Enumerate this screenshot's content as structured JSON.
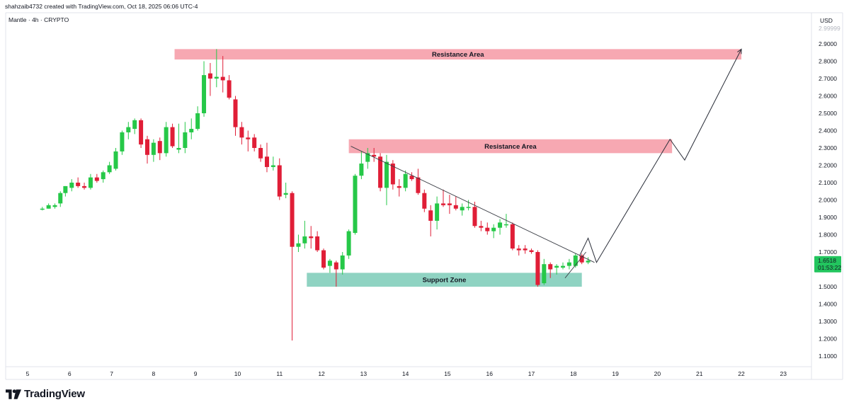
{
  "header": {
    "created_by": "shahzaib4732 created with TradingView.com, Oct 18, 2025 06:06 UTC-4"
  },
  "branding": {
    "logo_text": "TradingView"
  },
  "colors": {
    "up": "#26c848",
    "down": "#e01e37",
    "resistance_fill": "#f7a8b2",
    "support_fill": "#8fd3c2",
    "price_label_bg": "#22c55e",
    "grid": "#eef0f3",
    "axis_text": "#131722"
  },
  "chart_data": {
    "type": "candlestick",
    "symbol_line": "Mantle · 4h · CRYPTO",
    "currency": "USD",
    "y_axis": {
      "range": [
        1.05,
        3.0
      ],
      "ticks": [
        "1.1000",
        "1.2000",
        "1.3000",
        "1.4000",
        "1.5000",
        "1.6000",
        "1.7000",
        "1.8000",
        "1.9000",
        "2.0000",
        "2.1000",
        "2.2000",
        "2.3000",
        "2.4000",
        "2.5000",
        "2.6000",
        "2.7000",
        "2.8000",
        "2.9000"
      ],
      "top_tick_partial": "2.99999"
    },
    "x_axis": {
      "range": [
        4.5,
        23.3
      ],
      "labels": [
        "5",
        "6",
        "7",
        "8",
        "9",
        "10",
        "11",
        "12",
        "13",
        "14",
        "15",
        "16",
        "17",
        "18",
        "19",
        "20",
        "21",
        "22",
        "23"
      ]
    },
    "price_label": {
      "price": "1.6518",
      "countdown": "01:53:22"
    },
    "candles": [
      {
        "t": 5.35,
        "o": 1.95,
        "h": 1.96,
        "l": 1.94,
        "c": 1.95
      },
      {
        "t": 5.5,
        "o": 1.95,
        "h": 1.98,
        "l": 1.95,
        "c": 1.97
      },
      {
        "t": 5.65,
        "o": 1.96,
        "h": 1.98,
        "l": 1.95,
        "c": 1.97
      },
      {
        "t": 5.78,
        "o": 1.98,
        "h": 2.05,
        "l": 1.96,
        "c": 2.04
      },
      {
        "t": 5.9,
        "o": 2.04,
        "h": 2.08,
        "l": 2.02,
        "c": 2.08
      },
      {
        "t": 6.05,
        "o": 2.07,
        "h": 2.12,
        "l": 2.05,
        "c": 2.1
      },
      {
        "t": 6.2,
        "o": 2.1,
        "h": 2.13,
        "l": 2.07,
        "c": 2.08
      },
      {
        "t": 6.35,
        "o": 2.08,
        "h": 2.1,
        "l": 2.06,
        "c": 2.07
      },
      {
        "t": 6.5,
        "o": 2.07,
        "h": 2.15,
        "l": 2.06,
        "c": 2.13
      },
      {
        "t": 6.65,
        "o": 2.13,
        "h": 2.15,
        "l": 2.1,
        "c": 2.11
      },
      {
        "t": 6.8,
        "o": 2.12,
        "h": 2.17,
        "l": 2.1,
        "c": 2.16
      },
      {
        "t": 6.95,
        "o": 2.16,
        "h": 2.22,
        "l": 2.15,
        "c": 2.2
      },
      {
        "t": 7.1,
        "o": 2.18,
        "h": 2.3,
        "l": 2.17,
        "c": 2.28
      },
      {
        "t": 7.25,
        "o": 2.28,
        "h": 2.4,
        "l": 2.26,
        "c": 2.39
      },
      {
        "t": 7.4,
        "o": 2.39,
        "h": 2.45,
        "l": 2.35,
        "c": 2.42
      },
      {
        "t": 7.55,
        "o": 2.41,
        "h": 2.47,
        "l": 2.38,
        "c": 2.46
      },
      {
        "t": 7.7,
        "o": 2.46,
        "h": 2.47,
        "l": 2.3,
        "c": 2.32
      },
      {
        "t": 7.85,
        "o": 2.35,
        "h": 2.37,
        "l": 2.21,
        "c": 2.26
      },
      {
        "t": 8.0,
        "o": 2.26,
        "h": 2.35,
        "l": 2.22,
        "c": 2.33
      },
      {
        "t": 8.15,
        "o": 2.34,
        "h": 2.36,
        "l": 2.23,
        "c": 2.27
      },
      {
        "t": 8.3,
        "o": 2.27,
        "h": 2.45,
        "l": 2.25,
        "c": 2.42
      },
      {
        "t": 8.45,
        "o": 2.42,
        "h": 2.44,
        "l": 2.3,
        "c": 2.31
      },
      {
        "t": 8.6,
        "o": 2.29,
        "h": 2.44,
        "l": 2.27,
        "c": 2.3
      },
      {
        "t": 8.75,
        "o": 2.3,
        "h": 2.45,
        "l": 2.27,
        "c": 2.39
      },
      {
        "t": 8.9,
        "o": 2.39,
        "h": 2.47,
        "l": 2.35,
        "c": 2.41
      },
      {
        "t": 9.05,
        "o": 2.41,
        "h": 2.54,
        "l": 2.4,
        "c": 2.5
      },
      {
        "t": 9.2,
        "o": 2.5,
        "h": 2.8,
        "l": 2.48,
        "c": 2.72
      },
      {
        "t": 9.35,
        "o": 2.73,
        "h": 2.79,
        "l": 2.6,
        "c": 2.7
      },
      {
        "t": 9.5,
        "o": 2.7,
        "h": 2.87,
        "l": 2.65,
        "c": 2.71
      },
      {
        "t": 9.65,
        "o": 2.71,
        "h": 2.83,
        "l": 2.62,
        "c": 2.69
      },
      {
        "t": 9.8,
        "o": 2.69,
        "h": 2.72,
        "l": 2.58,
        "c": 2.59
      },
      {
        "t": 9.95,
        "o": 2.58,
        "h": 2.6,
        "l": 2.37,
        "c": 2.42
      },
      {
        "t": 10.1,
        "o": 2.42,
        "h": 2.45,
        "l": 2.32,
        "c": 2.36
      },
      {
        "t": 10.25,
        "o": 2.36,
        "h": 2.4,
        "l": 2.28,
        "c": 2.35
      },
      {
        "t": 10.4,
        "o": 2.36,
        "h": 2.38,
        "l": 2.28,
        "c": 2.3
      },
      {
        "t": 10.55,
        "o": 2.3,
        "h": 2.32,
        "l": 2.22,
        "c": 2.24
      },
      {
        "t": 10.7,
        "o": 2.25,
        "h": 2.33,
        "l": 2.16,
        "c": 2.19
      },
      {
        "t": 10.85,
        "o": 2.19,
        "h": 2.25,
        "l": 2.17,
        "c": 2.2
      },
      {
        "t": 11.0,
        "o": 2.2,
        "h": 2.24,
        "l": 2.0,
        "c": 2.02
      },
      {
        "t": 11.15,
        "o": 2.03,
        "h": 2.1,
        "l": 2.01,
        "c": 2.04
      },
      {
        "t": 11.3,
        "o": 2.04,
        "h": 2.05,
        "l": 1.19,
        "c": 1.73
      },
      {
        "t": 11.45,
        "o": 1.73,
        "h": 1.8,
        "l": 1.7,
        "c": 1.75
      },
      {
        "t": 11.6,
        "o": 1.75,
        "h": 1.88,
        "l": 1.72,
        "c": 1.79
      },
      {
        "t": 11.75,
        "o": 1.79,
        "h": 1.85,
        "l": 1.72,
        "c": 1.78
      },
      {
        "t": 11.9,
        "o": 1.79,
        "h": 1.82,
        "l": 1.7,
        "c": 1.71
      },
      {
        "t": 12.05,
        "o": 1.71,
        "h": 1.72,
        "l": 1.6,
        "c": 1.61
      },
      {
        "t": 12.2,
        "o": 1.62,
        "h": 1.66,
        "l": 1.58,
        "c": 1.65
      },
      {
        "t": 12.35,
        "o": 1.64,
        "h": 1.65,
        "l": 1.5,
        "c": 1.6
      },
      {
        "t": 12.5,
        "o": 1.6,
        "h": 1.7,
        "l": 1.57,
        "c": 1.68
      },
      {
        "t": 12.65,
        "o": 1.68,
        "h": 1.83,
        "l": 1.66,
        "c": 1.82
      },
      {
        "t": 12.8,
        "o": 1.81,
        "h": 2.15,
        "l": 1.8,
        "c": 2.14
      },
      {
        "t": 12.95,
        "o": 2.14,
        "h": 2.28,
        "l": 2.12,
        "c": 2.21
      },
      {
        "t": 13.1,
        "o": 2.22,
        "h": 2.3,
        "l": 2.18,
        "c": 2.27
      },
      {
        "t": 13.25,
        "o": 2.26,
        "h": 2.3,
        "l": 2.22,
        "c": 2.25
      },
      {
        "t": 13.4,
        "o": 2.25,
        "h": 2.27,
        "l": 2.05,
        "c": 2.07
      },
      {
        "t": 13.55,
        "o": 2.07,
        "h": 2.26,
        "l": 1.97,
        "c": 2.22
      },
      {
        "t": 13.7,
        "o": 2.21,
        "h": 2.23,
        "l": 2.06,
        "c": 2.09
      },
      {
        "t": 13.85,
        "o": 2.08,
        "h": 2.12,
        "l": 2.02,
        "c": 2.07
      },
      {
        "t": 14.0,
        "o": 2.07,
        "h": 2.17,
        "l": 2.05,
        "c": 2.15
      },
      {
        "t": 14.15,
        "o": 2.14,
        "h": 2.16,
        "l": 2.11,
        "c": 2.12
      },
      {
        "t": 14.3,
        "o": 2.13,
        "h": 2.18,
        "l": 2.03,
        "c": 2.04
      },
      {
        "t": 14.45,
        "o": 2.04,
        "h": 2.06,
        "l": 1.93,
        "c": 1.95
      },
      {
        "t": 14.6,
        "o": 1.94,
        "h": 1.97,
        "l": 1.79,
        "c": 1.88
      },
      {
        "t": 14.75,
        "o": 1.88,
        "h": 2.02,
        "l": 1.83,
        "c": 1.98
      },
      {
        "t": 14.9,
        "o": 1.98,
        "h": 2.06,
        "l": 1.96,
        "c": 1.97
      },
      {
        "t": 15.05,
        "o": 1.98,
        "h": 2.03,
        "l": 1.92,
        "c": 1.97
      },
      {
        "t": 15.2,
        "o": 1.97,
        "h": 2.02,
        "l": 1.94,
        "c": 1.95
      },
      {
        "t": 15.35,
        "o": 1.94,
        "h": 1.98,
        "l": 1.91,
        "c": 1.96
      },
      {
        "t": 15.5,
        "o": 1.96,
        "h": 2.0,
        "l": 1.94,
        "c": 1.96
      },
      {
        "t": 15.65,
        "o": 1.96,
        "h": 1.99,
        "l": 1.84,
        "c": 1.85
      },
      {
        "t": 15.8,
        "o": 1.85,
        "h": 1.88,
        "l": 1.82,
        "c": 1.84
      },
      {
        "t": 15.95,
        "o": 1.84,
        "h": 1.87,
        "l": 1.8,
        "c": 1.82
      },
      {
        "t": 16.1,
        "o": 1.82,
        "h": 1.86,
        "l": 1.78,
        "c": 1.84
      },
      {
        "t": 16.25,
        "o": 1.84,
        "h": 1.89,
        "l": 1.8,
        "c": 1.87
      },
      {
        "t": 16.4,
        "o": 1.86,
        "h": 1.92,
        "l": 1.84,
        "c": 1.86
      },
      {
        "t": 16.55,
        "o": 1.86,
        "h": 1.87,
        "l": 1.71,
        "c": 1.72
      },
      {
        "t": 16.7,
        "o": 1.72,
        "h": 1.74,
        "l": 1.68,
        "c": 1.71
      },
      {
        "t": 16.85,
        "o": 1.72,
        "h": 1.74,
        "l": 1.69,
        "c": 1.71
      },
      {
        "t": 17.0,
        "o": 1.71,
        "h": 1.72,
        "l": 1.69,
        "c": 1.7
      },
      {
        "t": 17.15,
        "o": 1.7,
        "h": 1.71,
        "l": 1.5,
        "c": 1.51
      },
      {
        "t": 17.3,
        "o": 1.52,
        "h": 1.66,
        "l": 1.51,
        "c": 1.63
      },
      {
        "t": 17.45,
        "o": 1.63,
        "h": 1.64,
        "l": 1.55,
        "c": 1.6
      },
      {
        "t": 17.6,
        "o": 1.61,
        "h": 1.63,
        "l": 1.57,
        "c": 1.62
      },
      {
        "t": 17.75,
        "o": 1.61,
        "h": 1.64,
        "l": 1.6,
        "c": 1.62
      },
      {
        "t": 17.9,
        "o": 1.62,
        "h": 1.66,
        "l": 1.6,
        "c": 1.64
      },
      {
        "t": 18.05,
        "o": 1.62,
        "h": 1.69,
        "l": 1.61,
        "c": 1.68
      },
      {
        "t": 18.2,
        "o": 1.68,
        "h": 1.69,
        "l": 1.63,
        "c": 1.64
      },
      {
        "t": 18.35,
        "o": 1.64,
        "h": 1.67,
        "l": 1.63,
        "c": 1.65
      }
    ],
    "zones": [
      {
        "label": "Resistance Area",
        "x": [
          8.5,
          22.0
        ],
        "y": [
          2.81,
          2.87
        ],
        "kind": "resistance"
      },
      {
        "label": "Resistance Area",
        "x": [
          12.65,
          20.35
        ],
        "y": [
          2.27,
          2.35
        ],
        "kind": "resistance"
      },
      {
        "label": "Support Zone",
        "x": [
          11.65,
          18.2
        ],
        "y": [
          1.5,
          1.58
        ],
        "kind": "support"
      }
    ],
    "trendlines": [
      {
        "points": [
          [
            12.7,
            2.31
          ],
          [
            18.5,
            1.64
          ]
        ]
      },
      {
        "points": [
          [
            17.8,
            1.55
          ],
          [
            18.3,
            1.7
          ]
        ]
      }
    ],
    "projection": [
      [
        18.15,
        1.68
      ],
      [
        18.35,
        1.78
      ],
      [
        18.55,
        1.64
      ],
      [
        20.3,
        2.35
      ],
      [
        20.65,
        2.23
      ],
      [
        22.0,
        2.87
      ]
    ]
  }
}
